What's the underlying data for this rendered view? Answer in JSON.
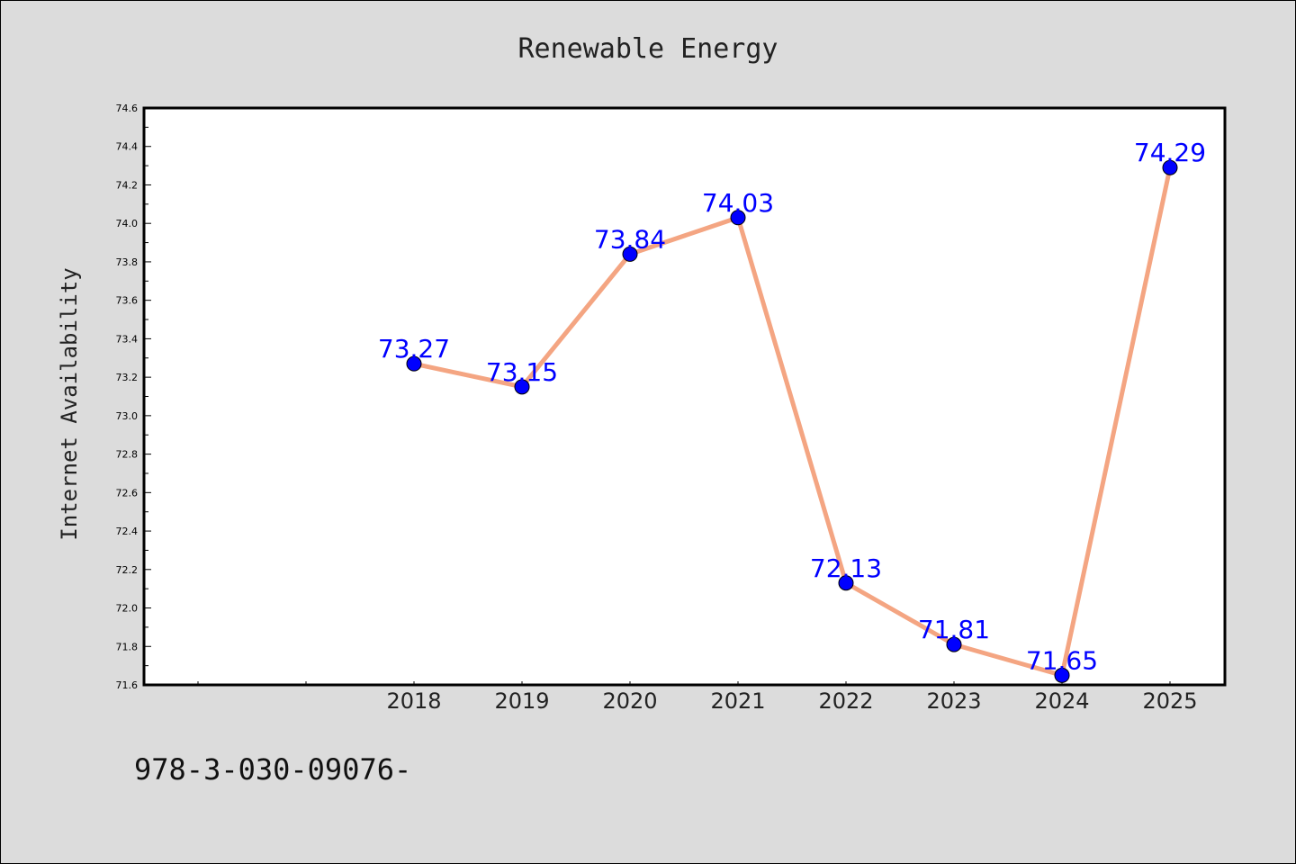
{
  "chart_data": {
    "type": "line",
    "title": "Renewable Energy",
    "xlabel": "",
    "ylabel": "Internet Availability",
    "x": [
      "2018",
      "2019",
      "2020",
      "2021",
      "2022",
      "2023",
      "2024",
      "2025"
    ],
    "series": [
      {
        "values": [
          73.27,
          73.15,
          73.84,
          74.03,
          72.13,
          71.81,
          71.65,
          74.29
        ],
        "data_labels": [
          "73.27",
          "73.15",
          "73.84",
          "74.03",
          "72.13",
          "71.81",
          "71.65",
          "74.29"
        ]
      }
    ],
    "ylim": [
      71.6,
      74.6
    ],
    "y_ticks": [
      "71.6",
      "71.8",
      "72.0",
      "72.2",
      "72.4",
      "72.6",
      "72.8",
      "73.0",
      "73.2",
      "73.4",
      "73.6",
      "73.8",
      "74.0",
      "74.2",
      "74.4",
      "74.6"
    ],
    "grid": false,
    "legend": "none",
    "line_color": "#f4a582",
    "marker_color": "#0000ff",
    "label_color": "#0000ff"
  },
  "footer": {
    "text": "978-3-030-09076-"
  }
}
